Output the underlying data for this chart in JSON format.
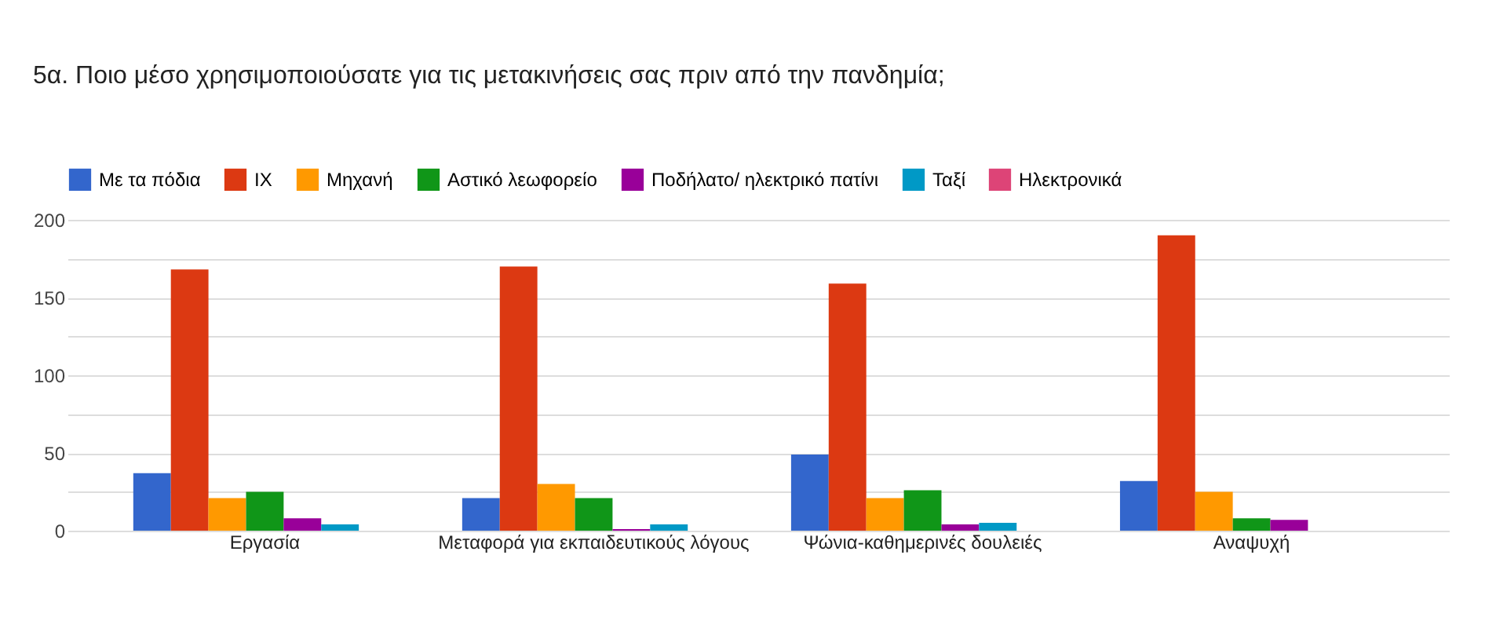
{
  "chart_data": {
    "type": "bar",
    "title": "5α. Ποιο μέσο χρησιμοποιούσατε για τις μετακινήσεις σας πριν από την πανδημία;",
    "categories": [
      "Εργασία",
      "Μεταφορά για εκπαιδευτικούς λόγους",
      "Ψώνια-καθημερινές δουλειές",
      "Αναψυχή"
    ],
    "series": [
      {
        "name": "Με τα πόδια",
        "color": "#3366cc",
        "values": [
          37,
          21,
          49,
          32
        ]
      },
      {
        "name": "ΙΧ",
        "color": "#dc3912",
        "values": [
          168,
          170,
          159,
          190
        ]
      },
      {
        "name": "Μηχανή",
        "color": "#ff9900",
        "values": [
          21,
          30,
          21,
          25
        ]
      },
      {
        "name": "Αστικό λεωφορείο",
        "color": "#109618",
        "values": [
          25,
          21,
          26,
          8
        ]
      },
      {
        "name": "Ποδήλατο/ ηλεκτρικό πατίνι",
        "color": "#990099",
        "values": [
          8,
          1,
          4,
          7
        ]
      },
      {
        "name": "Ταξί",
        "color": "#0099c6",
        "values": [
          4,
          4,
          5,
          0
        ]
      },
      {
        "name": "Ηλεκτρονικά",
        "color": "#dd4477",
        "values": [
          0,
          0,
          0,
          0
        ]
      }
    ],
    "ylim": [
      0,
      200
    ],
    "yticks": [
      0,
      {
        "value": 25,
        "label": null
      },
      50,
      {
        "value": 75,
        "label": null
      },
      100,
      {
        "value": 125,
        "label": null
      },
      150,
      {
        "value": 175,
        "label": null
      },
      200
    ],
    "grid": "y",
    "legend": "top"
  }
}
